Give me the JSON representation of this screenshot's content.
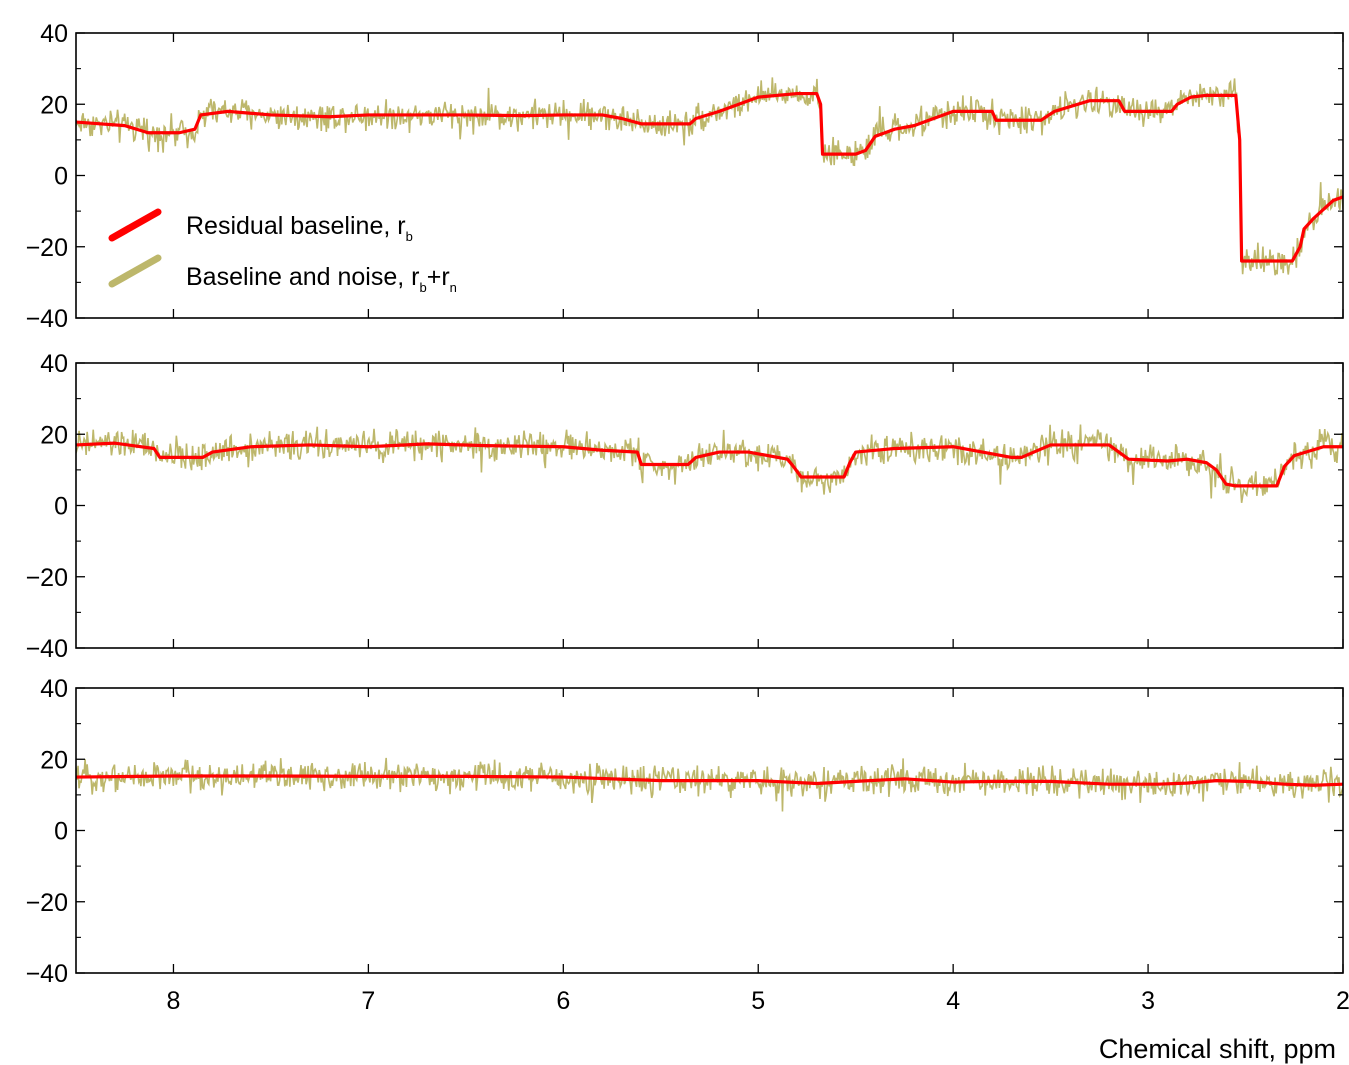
{
  "figure": {
    "xlabel": "Chemical shift, ppm",
    "legend": {
      "placement": "left, inside top panel",
      "items": [
        {
          "label": "Residual baseline, r",
          "sub": "b",
          "color": "#ff0000"
        },
        {
          "label": "Baseline and noise, r",
          "sub": "b",
          "label_mid": "+r",
          "sub2": "n",
          "color": "#bdb76b"
        }
      ]
    }
  },
  "chart_data": [
    {
      "type": "line",
      "panel": "top",
      "x_axis": {
        "reversed": true,
        "xlim": [
          8.5,
          2
        ],
        "ticks": [
          8,
          7,
          6,
          5,
          4,
          3,
          2
        ]
      },
      "ylim": [
        -40,
        40
      ],
      "yticks": [
        -40,
        -20,
        0,
        20,
        40
      ],
      "noise_amplitude": 6,
      "series": [
        {
          "name": "Residual baseline, r_b",
          "color": "#ff0000",
          "x": [
            8.5,
            8.25,
            8.13,
            7.97,
            7.89,
            7.86,
            7.72,
            7.5,
            7.2,
            7.0,
            6.8,
            6.5,
            6.2,
            6.0,
            5.8,
            5.7,
            5.6,
            5.35,
            5.32,
            5.2,
            5.0,
            4.8,
            4.7,
            4.68,
            4.67,
            4.5,
            4.45,
            4.4,
            4.3,
            4.2,
            4.0,
            3.8,
            3.78,
            3.55,
            3.48,
            3.3,
            3.15,
            3.12,
            2.88,
            2.85,
            2.78,
            2.7,
            2.55,
            2.53,
            2.52,
            2.26,
            2.22,
            2.2,
            2.15,
            2.05,
            2.0
          ],
          "y": [
            15,
            14,
            12,
            12,
            13,
            17,
            18,
            17,
            16.5,
            17,
            17,
            17,
            16.8,
            17,
            17,
            16,
            14.5,
            14.5,
            16,
            18,
            22,
            23,
            23,
            20,
            6,
            6,
            7,
            11,
            13,
            14,
            18,
            18,
            15.5,
            15.5,
            18,
            21,
            21,
            18,
            18,
            20,
            22,
            22.5,
            22.5,
            10,
            -24,
            -24,
            -20,
            -15,
            -12,
            -7,
            -6
          ]
        },
        {
          "name": "Baseline and noise, r_b+r_n",
          "color": "#bdb76b",
          "x": [
            8.5,
            8.25,
            8.13,
            7.97,
            7.89,
            7.86,
            7.72,
            7.5,
            7.2,
            7.0,
            6.8,
            6.5,
            6.2,
            6.0,
            5.8,
            5.7,
            5.6,
            5.35,
            5.32,
            5.2,
            5.0,
            4.8,
            4.7,
            4.68,
            4.67,
            4.5,
            4.45,
            4.4,
            4.3,
            4.2,
            4.0,
            3.8,
            3.78,
            3.55,
            3.48,
            3.3,
            3.15,
            3.12,
            2.88,
            2.85,
            2.78,
            2.7,
            2.55,
            2.53,
            2.52,
            2.26,
            2.22,
            2.2,
            2.15,
            2.05,
            2.0
          ],
          "y": [
            15,
            14,
            12,
            12,
            13,
            17,
            18,
            17,
            16.5,
            17,
            17,
            17,
            16.8,
            17,
            17,
            16,
            14.5,
            14.5,
            16,
            18,
            22,
            23,
            23,
            20,
            6,
            6,
            7,
            11,
            13,
            14,
            18,
            18,
            15.5,
            15.5,
            18,
            21,
            21,
            18,
            18,
            20,
            22,
            22.5,
            22.5,
            10,
            -24,
            -24,
            -20,
            -15,
            -12,
            -7,
            -6
          ]
        }
      ]
    },
    {
      "type": "line",
      "panel": "middle",
      "x_axis": {
        "reversed": true,
        "xlim": [
          8.5,
          2
        ],
        "ticks": [
          8,
          7,
          6,
          5,
          4,
          3,
          2
        ]
      },
      "ylim": [
        -40,
        40
      ],
      "yticks": [
        -40,
        -20,
        0,
        20,
        40
      ],
      "noise_amplitude": 6,
      "series": [
        {
          "name": "Residual baseline, r_b",
          "color": "#ff0000",
          "x": [
            8.5,
            8.3,
            8.1,
            8.07,
            7.85,
            7.8,
            7.6,
            7.3,
            7.0,
            6.7,
            6.4,
            6.0,
            5.8,
            5.62,
            5.6,
            5.36,
            5.32,
            5.2,
            5.05,
            4.85,
            4.82,
            4.78,
            4.56,
            4.53,
            4.5,
            4.3,
            4.0,
            3.7,
            3.65,
            3.5,
            3.2,
            3.1,
            2.9,
            2.8,
            2.7,
            2.65,
            2.6,
            2.55,
            2.34,
            2.3,
            2.25,
            2.1,
            2.0
          ],
          "y": [
            17,
            17.5,
            16,
            13.5,
            13.5,
            15,
            16.5,
            17,
            16.5,
            17.3,
            16.8,
            16.5,
            15.5,
            15,
            11.5,
            11.5,
            13.5,
            15,
            15,
            13,
            11,
            8,
            8,
            12,
            15,
            16,
            16.5,
            13.5,
            13.5,
            17,
            17,
            13,
            12.5,
            13,
            12,
            10,
            6,
            5.5,
            5.5,
            11,
            14,
            16.5,
            16.5
          ]
        },
        {
          "name": "Baseline and noise, r_b+r_n",
          "color": "#bdb76b",
          "x": [
            8.5,
            8.3,
            8.1,
            8.07,
            7.85,
            7.8,
            7.6,
            7.3,
            7.0,
            6.7,
            6.4,
            6.0,
            5.8,
            5.62,
            5.6,
            5.36,
            5.32,
            5.2,
            5.05,
            4.85,
            4.82,
            4.78,
            4.56,
            4.53,
            4.5,
            4.3,
            4.0,
            3.7,
            3.65,
            3.5,
            3.2,
            3.1,
            2.9,
            2.8,
            2.7,
            2.65,
            2.6,
            2.55,
            2.34,
            2.3,
            2.25,
            2.1,
            2.0
          ],
          "y": [
            17,
            17.5,
            16,
            13.5,
            13.5,
            15,
            16.5,
            17,
            16.5,
            17.3,
            16.8,
            16.5,
            15.5,
            15,
            11.5,
            11.5,
            13.5,
            15,
            15,
            13,
            11,
            8,
            8,
            12,
            15,
            16,
            16.5,
            13.5,
            13.5,
            17,
            17,
            13,
            12.5,
            13,
            12,
            10,
            6,
            5.5,
            5.5,
            11,
            14,
            16.5,
            16.5
          ]
        }
      ]
    },
    {
      "type": "line",
      "panel": "bottom",
      "x_axis": {
        "reversed": true,
        "xlim": [
          8.5,
          2
        ],
        "ticks": [
          8,
          7,
          6,
          5,
          4,
          3,
          2
        ]
      },
      "ylim": [
        -40,
        40
      ],
      "yticks": [
        -40,
        -20,
        0,
        20,
        40
      ],
      "noise_amplitude": 6,
      "series": [
        {
          "name": "Residual baseline, r_b",
          "color": "#ff0000",
          "x": [
            8.5,
            8.0,
            7.5,
            7.0,
            6.5,
            6.0,
            5.5,
            5.0,
            4.7,
            4.5,
            4.25,
            4.0,
            3.8,
            3.5,
            3.2,
            2.95,
            2.8,
            2.65,
            2.5,
            2.3,
            2.15,
            2.0
          ],
          "y": [
            15,
            15.3,
            15.3,
            15.2,
            15.2,
            15,
            14,
            14,
            13.2,
            13.8,
            14.5,
            13.6,
            13.8,
            13.8,
            13,
            13,
            13.3,
            14,
            13.8,
            13,
            12.7,
            13
          ]
        },
        {
          "name": "Baseline and noise, r_b+r_n",
          "color": "#bdb76b",
          "x": [
            8.5,
            8.0,
            7.5,
            7.0,
            6.5,
            6.0,
            5.5,
            5.0,
            4.7,
            4.5,
            4.25,
            4.0,
            3.8,
            3.5,
            3.2,
            2.95,
            2.8,
            2.65,
            2.5,
            2.3,
            2.15,
            2.0
          ],
          "y": [
            15,
            15.3,
            15.3,
            15.2,
            15.2,
            15,
            14,
            14,
            13.2,
            13.8,
            14.5,
            13.6,
            13.8,
            13.8,
            13,
            13,
            13.3,
            14,
            13.8,
            13,
            12.7,
            13
          ]
        }
      ]
    }
  ]
}
